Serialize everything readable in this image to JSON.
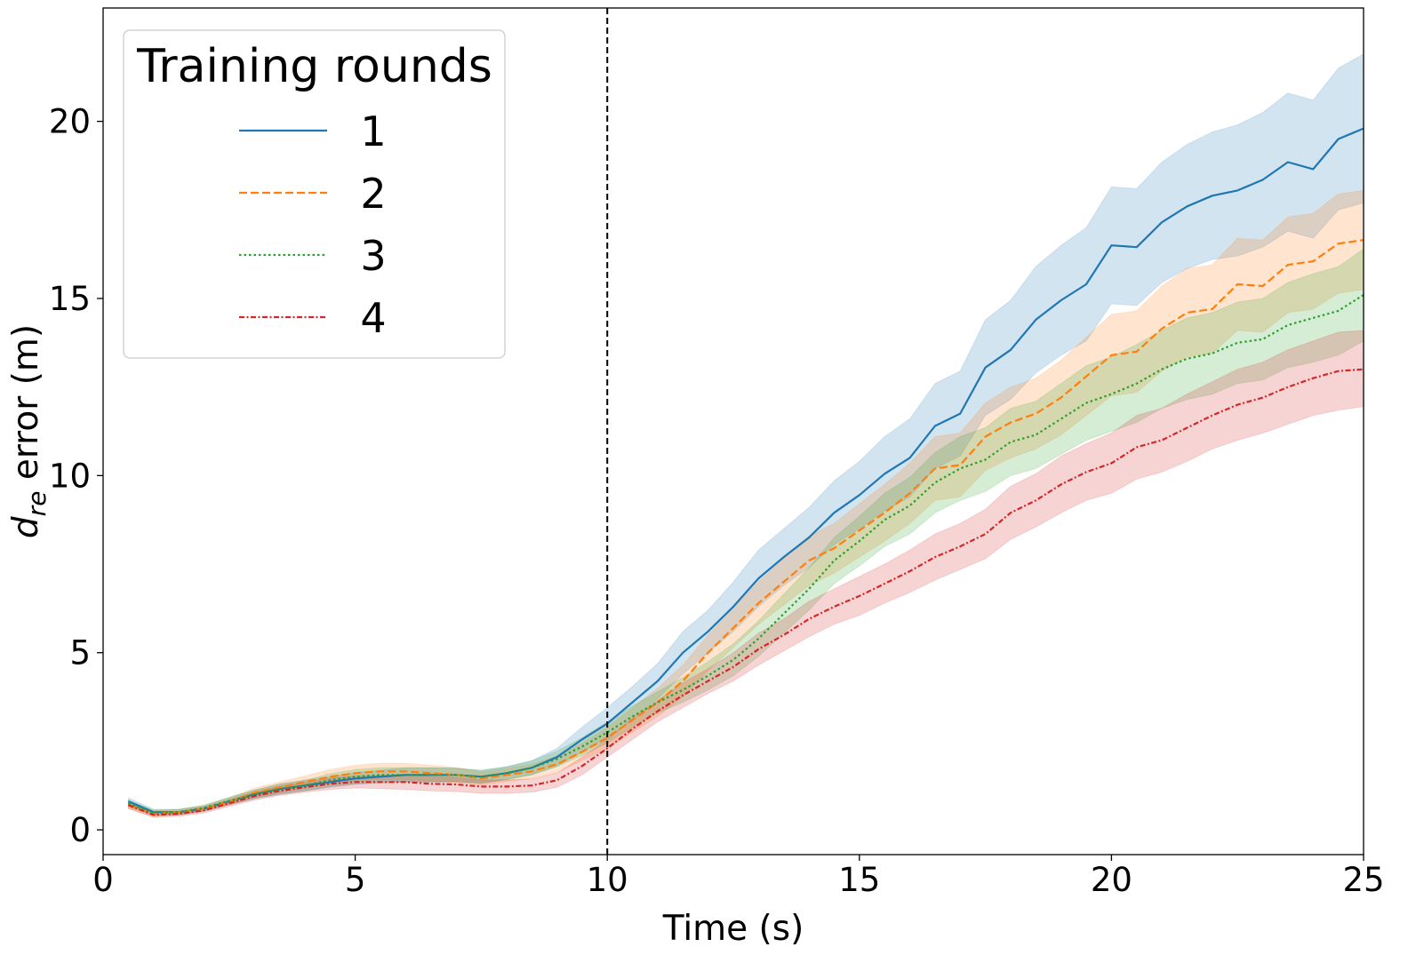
{
  "chart_data": {
    "type": "line",
    "title": "",
    "xlabel": "Time (s)",
    "ylabel": {
      "base": "d",
      "subscript": "re",
      "rest": " error (m)"
    },
    "xlim": [
      0,
      25
    ],
    "ylim": [
      -0.7,
      23.2
    ],
    "xticks": [
      0,
      5,
      10,
      15,
      20,
      25
    ],
    "yticks": [
      0,
      5,
      10,
      15,
      20
    ],
    "grid": false,
    "vline": {
      "x": 10,
      "style": "dashed",
      "color": "#000000"
    },
    "legend": {
      "title": "Training rounds",
      "placement": "top-left"
    },
    "x": [
      0.5,
      1,
      1.5,
      2,
      2.5,
      3,
      3.5,
      4,
      4.5,
      5,
      5.5,
      6,
      6.5,
      7,
      7.5,
      8,
      8.5,
      9,
      9.5,
      10,
      10.5,
      11,
      11.5,
      12,
      12.5,
      13,
      13.5,
      14,
      14.5,
      15,
      15.5,
      16,
      16.5,
      17,
      17.5,
      18,
      18.5,
      19,
      19.5,
      20,
      20.5,
      21,
      21.5,
      22,
      22.5,
      23,
      23.5,
      24,
      24.5,
      25
    ],
    "series": [
      {
        "name": "1",
        "color": "#1f77b4",
        "dash": "solid",
        "values": [
          0.8,
          0.5,
          0.5,
          0.6,
          0.8,
          1.0,
          1.15,
          1.25,
          1.35,
          1.45,
          1.5,
          1.55,
          1.55,
          1.55,
          1.5,
          1.6,
          1.75,
          2.05,
          2.55,
          3.0,
          3.6,
          4.2,
          5.0,
          5.6,
          6.3,
          7.1,
          7.7,
          8.25,
          8.95,
          9.45,
          10.05,
          10.5,
          11.4,
          11.75,
          13.05,
          13.55,
          14.4,
          14.95,
          15.4,
          16.5,
          16.45,
          17.15,
          17.6,
          17.9,
          18.05,
          18.35,
          18.85,
          18.65,
          19.5,
          19.8
        ],
        "lower": [
          0.7,
          0.42,
          0.42,
          0.52,
          0.7,
          0.88,
          1.0,
          1.1,
          1.2,
          1.28,
          1.32,
          1.35,
          1.35,
          1.36,
          1.32,
          1.42,
          1.55,
          1.8,
          2.2,
          2.55,
          3.15,
          3.7,
          4.4,
          5.0,
          5.6,
          6.3,
          6.9,
          7.4,
          8.05,
          8.5,
          9.0,
          9.4,
          10.2,
          10.55,
          11.7,
          12.15,
          12.9,
          13.4,
          13.8,
          14.85,
          14.8,
          15.45,
          15.85,
          16.1,
          16.2,
          16.45,
          16.9,
          16.7,
          17.5,
          17.7
        ],
        "upper": [
          0.9,
          0.58,
          0.58,
          0.68,
          0.9,
          1.12,
          1.3,
          1.4,
          1.5,
          1.62,
          1.68,
          1.75,
          1.75,
          1.74,
          1.68,
          1.78,
          1.95,
          2.3,
          2.9,
          3.45,
          4.05,
          4.7,
          5.6,
          6.2,
          7.0,
          7.9,
          8.5,
          9.1,
          9.85,
          10.4,
          11.1,
          11.6,
          12.6,
          12.95,
          14.4,
          14.95,
          15.9,
          16.5,
          17.0,
          18.15,
          18.1,
          18.85,
          19.35,
          19.7,
          19.9,
          20.25,
          20.8,
          20.6,
          21.5,
          21.9
        ]
      },
      {
        "name": "2",
        "color": "#ff7f0e",
        "dash": "dashed",
        "values": [
          0.7,
          0.45,
          0.5,
          0.6,
          0.8,
          1.05,
          1.2,
          1.35,
          1.5,
          1.6,
          1.65,
          1.65,
          1.6,
          1.55,
          1.45,
          1.55,
          1.65,
          1.85,
          2.2,
          2.6,
          3.1,
          3.6,
          4.2,
          5.0,
          5.7,
          6.4,
          7.0,
          7.6,
          7.95,
          8.45,
          8.95,
          9.5,
          10.2,
          10.3,
          11.1,
          11.5,
          11.75,
          12.2,
          12.8,
          13.4,
          13.5,
          14.15,
          14.6,
          14.7,
          15.4,
          15.35,
          15.95,
          16.05,
          16.55,
          16.65
        ],
        "lower": [
          0.6,
          0.37,
          0.42,
          0.52,
          0.7,
          0.92,
          1.05,
          1.18,
          1.3,
          1.38,
          1.42,
          1.42,
          1.38,
          1.34,
          1.27,
          1.36,
          1.45,
          1.62,
          1.95,
          2.3,
          2.75,
          3.2,
          3.75,
          4.5,
          5.15,
          5.8,
          6.35,
          6.9,
          7.25,
          7.7,
          8.15,
          8.65,
          9.3,
          9.4,
          10.15,
          10.5,
          10.75,
          11.15,
          11.7,
          12.25,
          12.35,
          12.95,
          13.35,
          13.45,
          14.1,
          14.05,
          14.6,
          14.7,
          15.15,
          15.25
        ],
        "upper": [
          0.8,
          0.53,
          0.58,
          0.68,
          0.9,
          1.18,
          1.35,
          1.52,
          1.7,
          1.82,
          1.88,
          1.88,
          1.82,
          1.76,
          1.63,
          1.74,
          1.85,
          2.08,
          2.45,
          2.9,
          3.45,
          4.0,
          4.65,
          5.5,
          6.25,
          7.0,
          7.65,
          8.3,
          8.65,
          9.2,
          9.75,
          10.35,
          11.1,
          11.2,
          12.05,
          12.5,
          12.75,
          13.25,
          13.9,
          14.55,
          14.65,
          15.35,
          15.85,
          15.95,
          16.7,
          16.65,
          17.3,
          17.4,
          17.95,
          18.05
        ]
      },
      {
        "name": "3",
        "color": "#2ca02c",
        "dash": "dotted",
        "values": [
          0.75,
          0.48,
          0.5,
          0.62,
          0.82,
          1.0,
          1.15,
          1.25,
          1.4,
          1.5,
          1.55,
          1.55,
          1.55,
          1.55,
          1.5,
          1.6,
          1.75,
          2.0,
          2.35,
          2.75,
          3.2,
          3.6,
          3.95,
          4.35,
          4.8,
          5.4,
          6.1,
          6.8,
          7.6,
          8.15,
          8.75,
          9.15,
          9.8,
          10.2,
          10.45,
          10.95,
          11.15,
          11.6,
          12.05,
          12.3,
          12.6,
          13.0,
          13.3,
          13.45,
          13.75,
          13.85,
          14.25,
          14.45,
          14.65,
          15.1
        ],
        "lower": [
          0.65,
          0.4,
          0.42,
          0.54,
          0.72,
          0.88,
          1.02,
          1.1,
          1.22,
          1.3,
          1.35,
          1.35,
          1.35,
          1.36,
          1.32,
          1.42,
          1.55,
          1.78,
          2.1,
          2.45,
          2.9,
          3.3,
          3.6,
          3.95,
          4.35,
          4.9,
          5.55,
          6.2,
          6.95,
          7.45,
          8.0,
          8.35,
          8.95,
          9.3,
          9.55,
          10.0,
          10.2,
          10.6,
          11.0,
          11.25,
          11.5,
          11.9,
          12.15,
          12.3,
          12.6,
          12.7,
          13.05,
          13.2,
          13.4,
          13.8
        ],
        "upper": [
          0.85,
          0.56,
          0.58,
          0.7,
          0.92,
          1.12,
          1.28,
          1.4,
          1.58,
          1.7,
          1.75,
          1.75,
          1.75,
          1.74,
          1.68,
          1.78,
          1.95,
          2.22,
          2.6,
          3.05,
          3.5,
          3.9,
          4.3,
          4.75,
          5.25,
          5.9,
          6.65,
          7.4,
          8.25,
          8.85,
          9.5,
          9.95,
          10.65,
          11.1,
          11.35,
          11.9,
          12.1,
          12.6,
          13.1,
          13.35,
          13.7,
          14.1,
          14.45,
          14.6,
          14.9,
          15.0,
          15.45,
          15.7,
          15.9,
          16.4
        ]
      },
      {
        "name": "4",
        "color": "#d62728",
        "dash": "dashdot",
        "values": [
          0.7,
          0.42,
          0.45,
          0.55,
          0.75,
          0.95,
          1.1,
          1.2,
          1.3,
          1.35,
          1.35,
          1.35,
          1.3,
          1.28,
          1.22,
          1.22,
          1.25,
          1.4,
          1.8,
          2.3,
          2.85,
          3.35,
          3.8,
          4.2,
          4.6,
          5.1,
          5.5,
          5.95,
          6.3,
          6.6,
          6.95,
          7.3,
          7.7,
          8.0,
          8.35,
          8.95,
          9.3,
          9.75,
          10.1,
          10.35,
          10.8,
          11.0,
          11.35,
          11.7,
          12.0,
          12.2,
          12.5,
          12.75,
          12.95,
          13.0
        ],
        "lower": [
          0.6,
          0.35,
          0.38,
          0.47,
          0.66,
          0.84,
          0.97,
          1.06,
          1.14,
          1.18,
          1.16,
          1.14,
          1.1,
          1.08,
          1.03,
          1.03,
          1.06,
          1.2,
          1.55,
          2.05,
          2.55,
          3.05,
          3.45,
          3.85,
          4.2,
          4.65,
          5.05,
          5.45,
          5.8,
          6.05,
          6.4,
          6.7,
          7.05,
          7.35,
          7.65,
          8.2,
          8.55,
          8.95,
          9.3,
          9.5,
          9.9,
          10.1,
          10.4,
          10.75,
          11.0,
          11.2,
          11.45,
          11.7,
          11.85,
          11.95
        ],
        "upper": [
          0.8,
          0.49,
          0.52,
          0.63,
          0.84,
          1.06,
          1.23,
          1.34,
          1.46,
          1.52,
          1.54,
          1.56,
          1.5,
          1.48,
          1.41,
          1.41,
          1.44,
          1.6,
          2.05,
          2.55,
          3.15,
          3.65,
          4.15,
          4.55,
          5.0,
          5.55,
          5.95,
          6.45,
          6.8,
          7.15,
          7.5,
          7.9,
          8.35,
          8.65,
          9.05,
          9.7,
          10.05,
          10.55,
          10.9,
          11.2,
          11.7,
          11.9,
          12.3,
          12.65,
          13.0,
          13.2,
          13.55,
          13.8,
          14.05,
          14.1
        ]
      }
    ]
  }
}
